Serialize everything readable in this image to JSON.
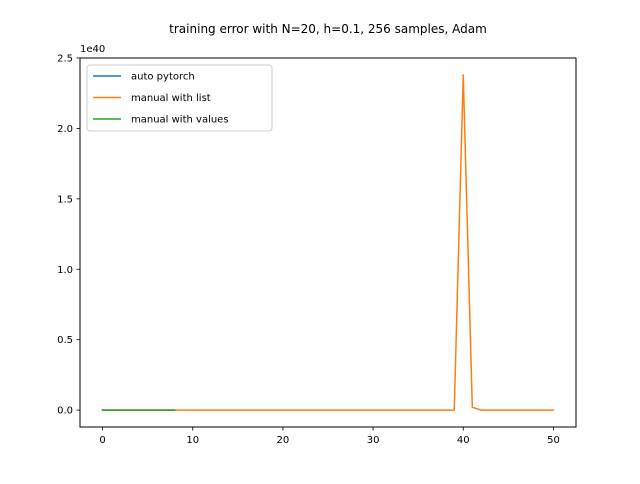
{
  "chart_data": {
    "type": "line",
    "title": "training error with N=20, h=0.1, 256 samples, Adam",
    "xlabel": "",
    "ylabel": "",
    "y_offset_label": "1e40",
    "y_scale_exponent": 40,
    "xlim": [
      -2.5,
      52.5
    ],
    "ylim": [
      -0.12,
      2.5
    ],
    "x_ticks": [
      0,
      10,
      20,
      30,
      40,
      50
    ],
    "x_tick_labels": [
      "0",
      "10",
      "20",
      "30",
      "40",
      "50"
    ],
    "y_ticks": [
      0.0,
      0.5,
      1.0,
      1.5,
      2.0,
      2.5
    ],
    "y_tick_labels": [
      "0.0",
      "0.5",
      "1.0",
      "1.5",
      "2.0",
      "2.5"
    ],
    "grid": false,
    "legend_position": "top-left",
    "series": [
      {
        "name": "auto pytorch",
        "color": "#1f77b4",
        "x": [
          0,
          1,
          2,
          3,
          4,
          5,
          6,
          7,
          8
        ],
        "y": [
          0,
          0,
          0,
          0,
          0,
          0,
          0,
          0,
          0
        ]
      },
      {
        "name": "manual with list",
        "color": "#ff7f0e",
        "x": [
          0,
          1,
          2,
          3,
          4,
          5,
          6,
          7,
          8,
          9,
          10,
          11,
          12,
          13,
          14,
          15,
          16,
          17,
          18,
          19,
          20,
          21,
          22,
          23,
          24,
          25,
          26,
          27,
          28,
          29,
          30,
          31,
          32,
          33,
          34,
          35,
          36,
          37,
          38,
          39,
          40,
          41,
          42,
          43,
          44,
          45,
          46,
          47,
          48,
          49,
          50
        ],
        "y": [
          0,
          0,
          0,
          0,
          0,
          0,
          0,
          0,
          0,
          0,
          0,
          0,
          0,
          0,
          0,
          0,
          0,
          0,
          0,
          0,
          0,
          0,
          0,
          0,
          0,
          0,
          0,
          0,
          0,
          0,
          0,
          0,
          0,
          0,
          0,
          0,
          0,
          0,
          0,
          0,
          2.38,
          0.02,
          0,
          0,
          0,
          0,
          0,
          0,
          0,
          0,
          0
        ]
      },
      {
        "name": "manual with values",
        "color": "#2ca02c",
        "x": [
          0,
          1,
          2,
          3,
          4,
          5,
          6,
          7,
          8
        ],
        "y": [
          0,
          0,
          0,
          0,
          0,
          0,
          0,
          0,
          0
        ]
      }
    ]
  }
}
